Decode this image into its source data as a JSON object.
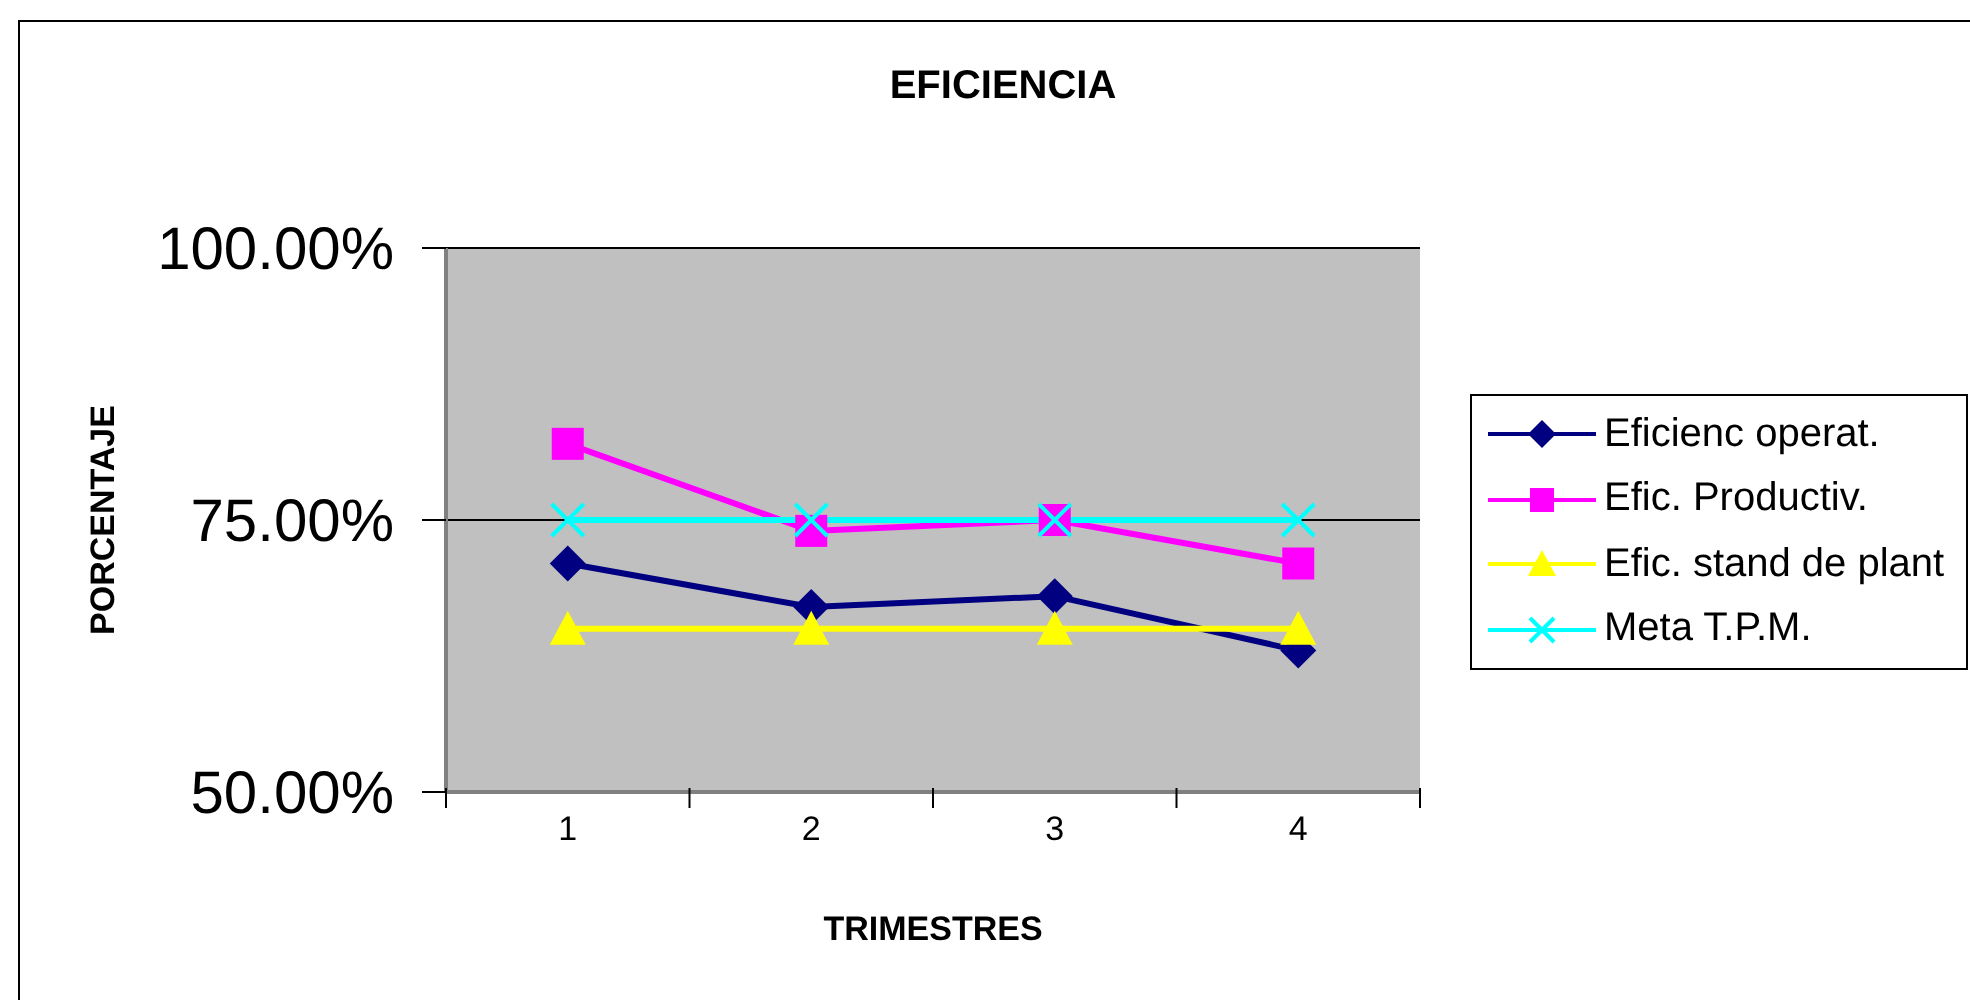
{
  "chart_data": {
    "type": "line",
    "title": "EFICIENCIA",
    "xlabel": "TRIMESTRES",
    "ylabel": "PORCENTAJE",
    "categories": [
      "1",
      "2",
      "3",
      "4"
    ],
    "series": [
      {
        "name": "Eficienc operat.",
        "color": "#000080",
        "marker": "diamond",
        "values": [
          71,
          67,
          68,
          63
        ]
      },
      {
        "name": "Efic. Productiv.",
        "color": "#ff00ff",
        "marker": "square",
        "values": [
          82,
          74,
          75,
          71
        ]
      },
      {
        "name": "Efic. stand de plant",
        "color": "#ffff00",
        "marker": "triangle",
        "values": [
          65,
          65,
          65,
          65
        ]
      },
      {
        "name": "Meta T.P.M.",
        "color": "#00ffff",
        "marker": "cross",
        "values": [
          75,
          75,
          75,
          75
        ]
      }
    ],
    "ylim": [
      50,
      100
    ],
    "yticks": [
      {
        "value": 50,
        "label": "50.00%"
      },
      {
        "value": 75,
        "label": "75.00%"
      },
      {
        "value": 100,
        "label": "100.00%"
      }
    ],
    "grid": "y",
    "legend": "right"
  }
}
